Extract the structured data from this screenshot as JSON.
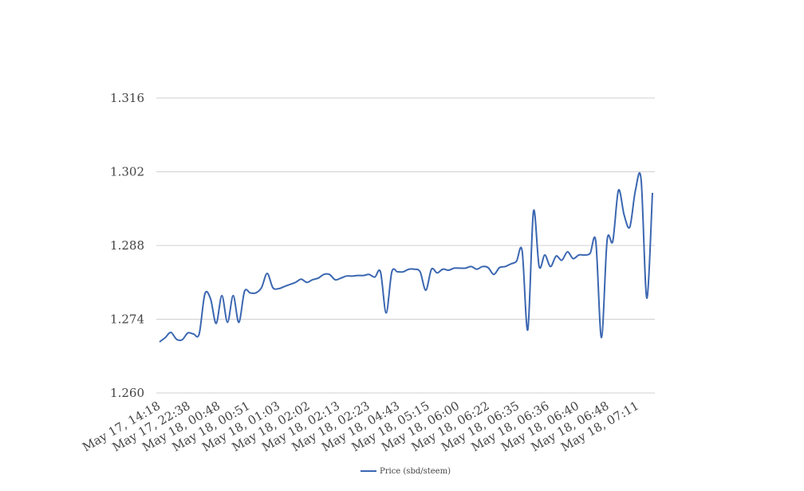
{
  "chart_data": {
    "type": "line",
    "title": "",
    "xlabel": "",
    "ylabel": "",
    "ylim": [
      1.26,
      1.316
    ],
    "yticks": [
      "1.260",
      "1.274",
      "1.288",
      "1.302",
      "1.316"
    ],
    "grid": true,
    "legend_position": "bottom",
    "x_tick_labels": [
      "May 17, 14:18",
      "May 17, 22:38",
      "May 18, 00:48",
      "May 18, 00:51",
      "May 18, 01:03",
      "May 18, 02:02",
      "May 18, 02:13",
      "May 18, 02:23",
      "May 18, 04:43",
      "May 18, 05:15",
      "May 18, 06:00",
      "May 18, 06:22",
      "May 18, 06:35",
      "May 18, 06:36",
      "May 18, 06:40",
      "May 18, 06:48",
      "May 18, 07:11"
    ],
    "series": [
      {
        "name": "Price (sbd/steem)",
        "color": "#3b67b1",
        "values": [
          1.2697,
          1.2705,
          1.2715,
          1.2702,
          1.2701,
          1.2714,
          1.2712,
          1.2712,
          1.2788,
          1.2779,
          1.2732,
          1.2785,
          1.2734,
          1.2785,
          1.2734,
          1.2793,
          1.279,
          1.279,
          1.28,
          1.2827,
          1.28,
          1.2798,
          1.2802,
          1.2806,
          1.281,
          1.2816,
          1.281,
          1.2815,
          1.2818,
          1.2825,
          1.2825,
          1.2815,
          1.2818,
          1.2822,
          1.2822,
          1.2823,
          1.2823,
          1.2825,
          1.282,
          1.283,
          1.2752,
          1.283,
          1.283,
          1.283,
          1.2835,
          1.2835,
          1.283,
          1.2795,
          1.2835,
          1.2828,
          1.2835,
          1.2833,
          1.2837,
          1.2837,
          1.2837,
          1.284,
          1.2835,
          1.284,
          1.2838,
          1.2825,
          1.2838,
          1.284,
          1.2845,
          1.285,
          1.287,
          1.272,
          1.2945,
          1.284,
          1.2862,
          1.284,
          1.286,
          1.2852,
          1.2868,
          1.2855,
          1.2862,
          1.2862,
          1.2865,
          1.2888,
          1.2705,
          1.289,
          1.2888,
          1.2985,
          1.2938,
          1.2915,
          1.2985,
          1.3005,
          1.278,
          1.298
        ]
      }
    ]
  }
}
